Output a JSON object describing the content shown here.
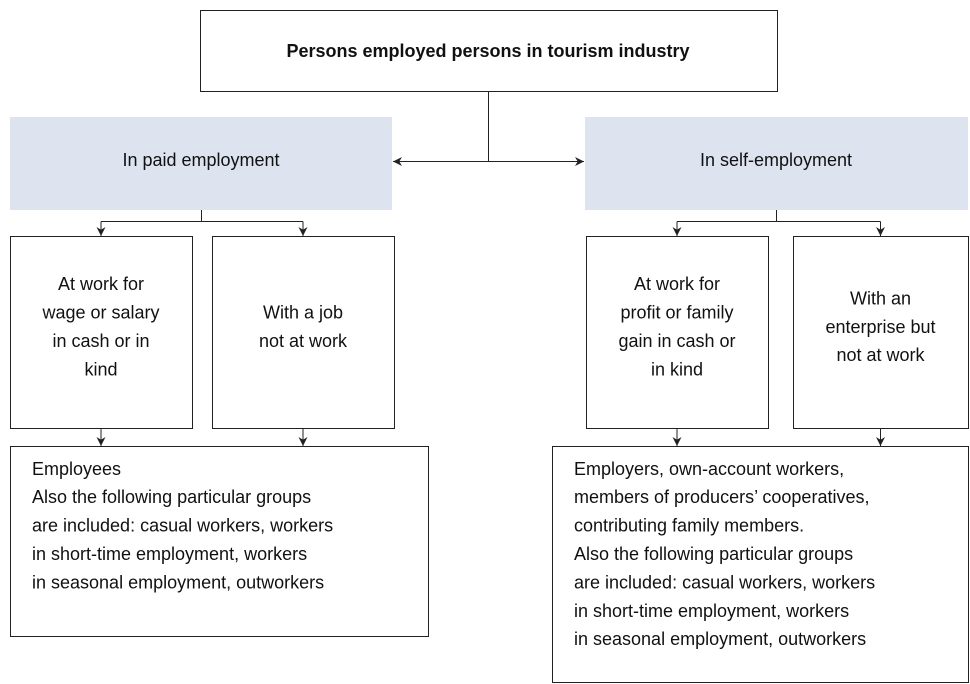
{
  "title": "Persons employed persons in tourism industry",
  "branches": [
    {
      "label": "In paid employment",
      "boxes": [
        {
          "lines": [
            "At work for",
            "wage or salary",
            "in cash or in",
            "kind"
          ]
        },
        {
          "lines": [
            "With a job",
            "not at work"
          ]
        }
      ],
      "description": [
        "Employees",
        "Also the following particular groups",
        "are included: casual workers, workers",
        "in short-time employment, workers",
        "in seasonal employment, outworkers"
      ]
    },
    {
      "label": "In self-employment",
      "boxes": [
        {
          "lines": [
            "At work for",
            "profit or family",
            "gain in cash or",
            "in kind"
          ]
        },
        {
          "lines": [
            "With an",
            "enterprise but",
            "not at work"
          ]
        }
      ],
      "description": [
        "Employers, own-account workers,",
        "members of producers’ cooperatives,",
        "contributing family members.",
        "Also the following particular groups",
        "are included: casual workers, workers",
        "in short-time employment, workers",
        "in seasonal employment, outworkers"
      ]
    }
  ]
}
